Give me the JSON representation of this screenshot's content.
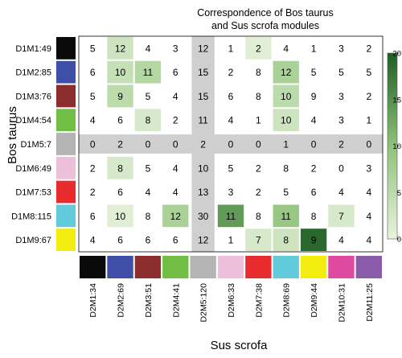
{
  "chart_data": {
    "type": "heatmap",
    "title_lines": [
      "Correspondence of Bos taurus",
      "and Sus scrofa modules"
    ],
    "xlabel": "Sus scrofa",
    "ylabel": "Bos taurus",
    "rows": [
      "D1M1:49",
      "D1M2:85",
      "D1M3:76",
      "D1M4:54",
      "D1M5:7",
      "D1M6:49",
      "D1M7:53",
      "D1M8:115",
      "D1M9:67"
    ],
    "row_colors": [
      "#0a0a0a",
      "#3f4fa7",
      "#8c2d2e",
      "#71be45",
      "#b4b4b4",
      "#eebfda",
      "#e82c2e",
      "#62cbdb",
      "#f2ed0f"
    ],
    "columns": [
      "D2M1:34",
      "D2M2:69",
      "D2M3:51",
      "D2M4:41",
      "D2M5:120",
      "D2M6:33",
      "D2M7:38",
      "D2M8:69",
      "D2M9:44",
      "D2M10:31",
      "D2M11:25"
    ],
    "column_colors": [
      "#0a0a0a",
      "#3f4fa7",
      "#8c2d2e",
      "#71be45",
      "#b4b4b4",
      "#eebfda",
      "#e82c2e",
      "#62cbdb",
      "#f2ed0f",
      "#de4aa0",
      "#8a5aab"
    ],
    "counts": [
      [
        5,
        12,
        4,
        3,
        12,
        1,
        2,
        4,
        1,
        3,
        2
      ],
      [
        6,
        10,
        11,
        6,
        15,
        2,
        8,
        12,
        5,
        5,
        5
      ],
      [
        5,
        9,
        5,
        4,
        15,
        6,
        8,
        10,
        9,
        3,
        2
      ],
      [
        4,
        6,
        8,
        2,
        11,
        4,
        1,
        10,
        4,
        3,
        1
      ],
      [
        0,
        2,
        0,
        0,
        2,
        0,
        0,
        1,
        0,
        2,
        0
      ],
      [
        2,
        8,
        5,
        4,
        10,
        5,
        2,
        8,
        2,
        0,
        3
      ],
      [
        2,
        6,
        4,
        4,
        13,
        3,
        2,
        5,
        6,
        4,
        4
      ],
      [
        6,
        10,
        8,
        12,
        30,
        11,
        8,
        11,
        8,
        7,
        4
      ],
      [
        4,
        6,
        6,
        6,
        12,
        1,
        7,
        8,
        9,
        4,
        4
      ]
    ],
    "shaded_levels": [
      [
        0,
        3,
        0,
        0,
        0,
        0,
        1,
        0,
        0,
        0,
        0
      ],
      [
        0,
        4,
        6,
        0,
        0,
        0,
        0,
        7,
        0,
        0,
        0
      ],
      [
        0,
        5,
        0,
        0,
        0,
        0,
        0,
        5,
        0,
        0,
        0
      ],
      [
        0,
        0,
        2,
        0,
        0,
        0,
        0,
        3,
        0,
        0,
        0
      ],
      [
        0,
        0,
        0,
        0,
        0,
        0,
        0,
        0,
        0,
        0,
        0
      ],
      [
        0,
        2,
        0,
        0,
        0,
        0,
        0,
        0,
        0,
        0,
        0
      ],
      [
        0,
        0,
        0,
        0,
        0,
        0,
        0,
        0,
        0,
        0,
        0
      ],
      [
        0,
        1,
        0,
        7,
        0,
        14,
        0,
        9,
        0,
        2,
        0
      ],
      [
        0,
        0,
        0,
        0,
        0,
        0,
        2,
        3,
        19,
        0,
        0
      ]
    ],
    "highlight_row": "D1M5:7",
    "highlight_column": "D2M5:120",
    "highlight_color": "#cfcfcf",
    "colorbar": {
      "ticks": [
        0,
        5,
        10,
        15,
        20
      ],
      "range": [
        0,
        20
      ],
      "low_color": "#e9f3df",
      "mid_color": "#8fc27a",
      "high_color": "#1f5e24"
    }
  }
}
